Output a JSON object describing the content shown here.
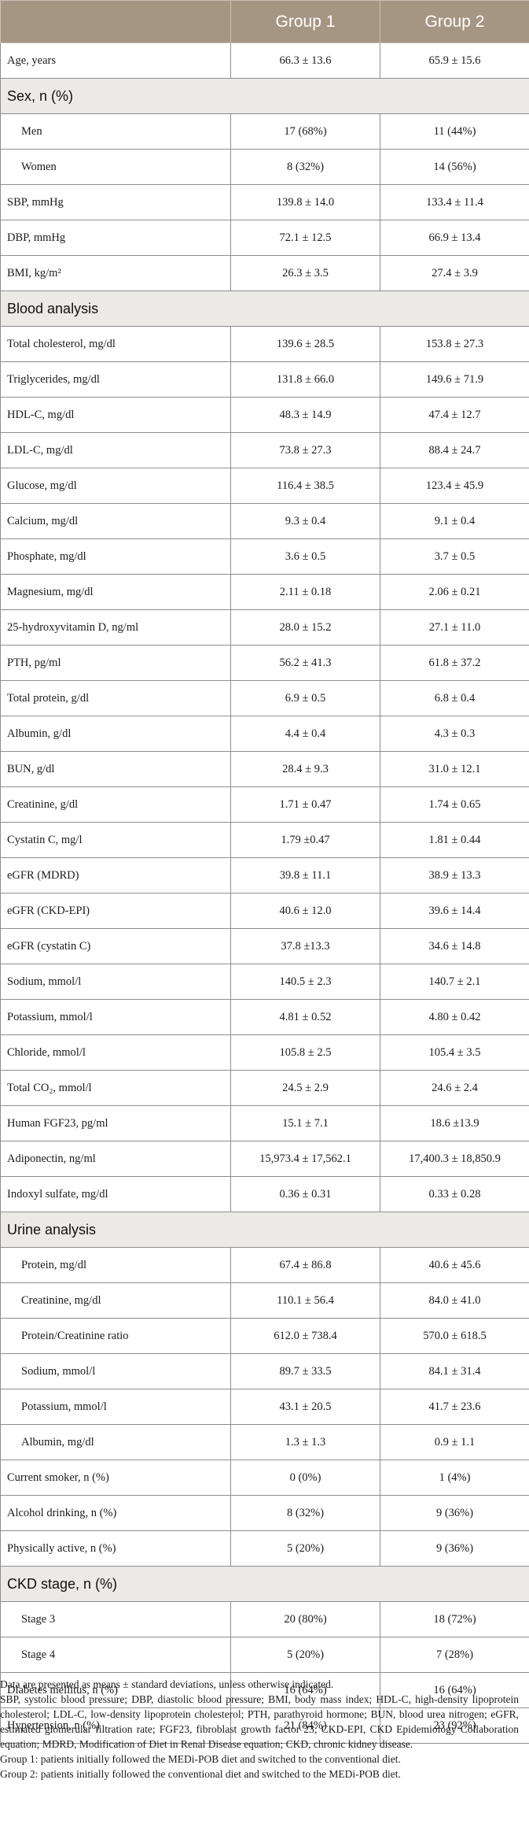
{
  "header": {
    "col0": "",
    "group1": "Group 1",
    "group2": "Group 2"
  },
  "rows": [
    {
      "type": "row",
      "label": "Age, years",
      "g1": "66.3 ± 13.6",
      "g2": "65.9 ± 15.6"
    },
    {
      "type": "section",
      "label": "Sex, n (%)"
    },
    {
      "type": "row",
      "indent": true,
      "label": "Men",
      "g1": "17 (68%)",
      "g2": "11 (44%)"
    },
    {
      "type": "row",
      "indent": true,
      "label": "Women",
      "g1": "8 (32%)",
      "g2": "14 (56%)"
    },
    {
      "type": "row",
      "label": "SBP, mmHg",
      "g1": "139.8 ± 14.0",
      "g2": "133.4 ± 11.4"
    },
    {
      "type": "row",
      "label": "DBP, mmHg",
      "g1": "72.1 ± 12.5",
      "g2": "66.9 ± 13.4"
    },
    {
      "type": "row",
      "label": "BMI, kg/m²",
      "g1": "26.3 ± 3.5",
      "g2": "27.4 ± 3.9"
    },
    {
      "type": "section",
      "label": "Blood analysis"
    },
    {
      "type": "row",
      "label": "Total cholesterol, mg/dl",
      "g1": "139.6 ± 28.5",
      "g2": "153.8 ± 27.3"
    },
    {
      "type": "row",
      "label": "Triglycerides, mg/dl",
      "g1": "131.8 ± 66.0",
      "g2": "149.6 ± 71.9"
    },
    {
      "type": "row",
      "label": "HDL-C, mg/dl",
      "g1": "48.3 ± 14.9",
      "g2": "47.4 ± 12.7"
    },
    {
      "type": "row",
      "label": "LDL-C, mg/dl",
      "g1": "73.8 ± 27.3",
      "g2": "88.4 ± 24.7"
    },
    {
      "type": "row",
      "label": "Glucose, mg/dl",
      "g1": "116.4 ± 38.5",
      "g2": "123.4 ± 45.9"
    },
    {
      "type": "row",
      "label": "Calcium, mg/dl",
      "g1": "9.3 ± 0.4",
      "g2": "9.1 ± 0.4"
    },
    {
      "type": "row",
      "label": "Phosphate, mg/dl",
      "g1": "3.6 ± 0.5",
      "g2": "3.7 ± 0.5"
    },
    {
      "type": "row",
      "label": "Magnesium, mg/dl",
      "g1": "2.11 ± 0.18",
      "g2": "2.06 ± 0.21"
    },
    {
      "type": "row",
      "label": "25-hydroxyvitamin D, ng/ml",
      "g1": "28.0 ± 15.2",
      "g2": "27.1 ± 11.0"
    },
    {
      "type": "row",
      "label": "PTH, pg/ml",
      "g1": "56.2 ± 41.3",
      "g2": "61.8 ± 37.2"
    },
    {
      "type": "row",
      "label": "Total protein, g/dl",
      "g1": "6.9 ± 0.5",
      "g2": "6.8 ± 0.4"
    },
    {
      "type": "row",
      "label": "Albumin, g/dl",
      "g1": "4.4 ± 0.4",
      "g2": "4.3 ± 0.3"
    },
    {
      "type": "row",
      "label": "BUN, g/dl",
      "g1": "28.4 ± 9.3",
      "g2": "31.0 ± 12.1"
    },
    {
      "type": "row",
      "label": "Creatinine, g/dl",
      "g1": "1.71 ± 0.47",
      "g2": "1.74 ± 0.65"
    },
    {
      "type": "row",
      "label": "Cystatin C, mg/l",
      "g1": "1.79 ±0.47",
      "g2": "1.81 ± 0.44"
    },
    {
      "type": "row",
      "label": "eGFR (MDRD)",
      "g1": "39.8 ± 11.1",
      "g2": "38.9 ± 13.3"
    },
    {
      "type": "row",
      "label": "eGFR (CKD-EPI)",
      "g1": "40.6 ± 12.0",
      "g2": "39.6 ± 14.4"
    },
    {
      "type": "row",
      "label": "eGFR (cystatin C)",
      "g1": "37.8 ±13.3",
      "g2": "34.6 ± 14.8"
    },
    {
      "type": "row",
      "label": "Sodium, mmol/l",
      "g1": "140.5 ± 2.3",
      "g2": "140.7 ± 2.1"
    },
    {
      "type": "row",
      "label": "Potassium, mmol/l",
      "g1": "4.81 ± 0.52",
      "g2": "4.80 ± 0.42"
    },
    {
      "type": "row",
      "label": "Chloride, mmol/l",
      "g1": "105.8 ± 2.5",
      "g2": "105.4 ± 3.5"
    },
    {
      "type": "row",
      "label": "Total CO₂, mmol/l",
      "g1": "24.5 ± 2.9",
      "g2": "24.6 ± 2.4"
    },
    {
      "type": "row",
      "label": "Human FGF23, pg/ml",
      "g1": "15.1 ± 7.1",
      "g2": "18.6 ±13.9"
    },
    {
      "type": "row",
      "label": "Adiponectin, ng/ml",
      "g1": "15,973.4 ± 17,562.1",
      "g2": "17,400.3 ± 18,850.9"
    },
    {
      "type": "row",
      "label": "Indoxyl sulfate, mg/dl",
      "g1": "0.36 ± 0.31",
      "g2": "0.33 ± 0.28"
    },
    {
      "type": "section",
      "label": "Urine analysis"
    },
    {
      "type": "row",
      "indent": true,
      "label": "Protein, mg/dl",
      "g1": "67.4 ± 86.8",
      "g2": "40.6 ± 45.6"
    },
    {
      "type": "row",
      "indent": true,
      "label": "Creatinine, mg/dl",
      "g1": "110.1 ± 56.4",
      "g2": "84.0 ± 41.0"
    },
    {
      "type": "row",
      "indent": true,
      "label": "Protein/Creatinine ratio",
      "g1": "612.0 ± 738.4",
      "g2": "570.0 ± 618.5"
    },
    {
      "type": "row",
      "indent": true,
      "label": "Sodium, mmol/l",
      "g1": "89.7 ± 33.5",
      "g2": "84.1 ± 31.4"
    },
    {
      "type": "row",
      "indent": true,
      "label": "Potassium, mmol/l",
      "g1": "43.1 ± 20.5",
      "g2": "41.7 ± 23.6"
    },
    {
      "type": "row",
      "indent": true,
      "label": "Albumin, mg/dl",
      "g1": "1.3 ± 1.3",
      "g2": "0.9 ± 1.1"
    },
    {
      "type": "row",
      "label": "Current smoker, n (%)",
      "g1": "0 (0%)",
      "g2": "1 (4%)"
    },
    {
      "type": "row",
      "label": "Alcohol drinking, n (%)",
      "g1": "8 (32%)",
      "g2": "9 (36%)"
    },
    {
      "type": "row",
      "label": "Physically active, n (%)",
      "g1": "5 (20%)",
      "g2": "9 (36%)"
    },
    {
      "type": "section",
      "label": "CKD stage, n (%)"
    },
    {
      "type": "row",
      "indent": true,
      "label": "Stage 3",
      "g1": "20 (80%)",
      "g2": "18 (72%)"
    },
    {
      "type": "row",
      "indent": true,
      "label": "Stage 4",
      "g1": "5 (20%)",
      "g2": "7 (28%)"
    },
    {
      "type": "row",
      "label": "Diabetes mellitus, n (%)",
      "g1": "16 (64%)",
      "g2": "16 (64%)"
    },
    {
      "type": "row",
      "label": "Hypertension, n (%)",
      "g1": "21 (84%)",
      "g2": "23 (92%)"
    }
  ],
  "footnotes": [
    "Data are presented as means ± standard deviations, unless otherwise indicated.",
    "SBP, systolic blood pressure; DBP, diastolic blood pressure; BMI, body mass index; HDL-C, high-density lipoprotein cholesterol; LDL-C, low-density lipoprotein cholesterol; PTH, parathyroid hormone; BUN, blood urea nitrogen; eGFR, estimated glomerular filtration rate; FGF23, fibroblast growth factor 23; CKD-EPI, CKD Epidemiology Collaboration equation; MDRD, Modification of Diet in Renal Disease equation; CKD, chronic kidney disease.",
    "Group 1: patients initially followed the MEDi-POB diet and switched to the conventional diet.",
    "Group 2: patients initially followed the conventional diet and switched to the MEDi-POB diet."
  ]
}
